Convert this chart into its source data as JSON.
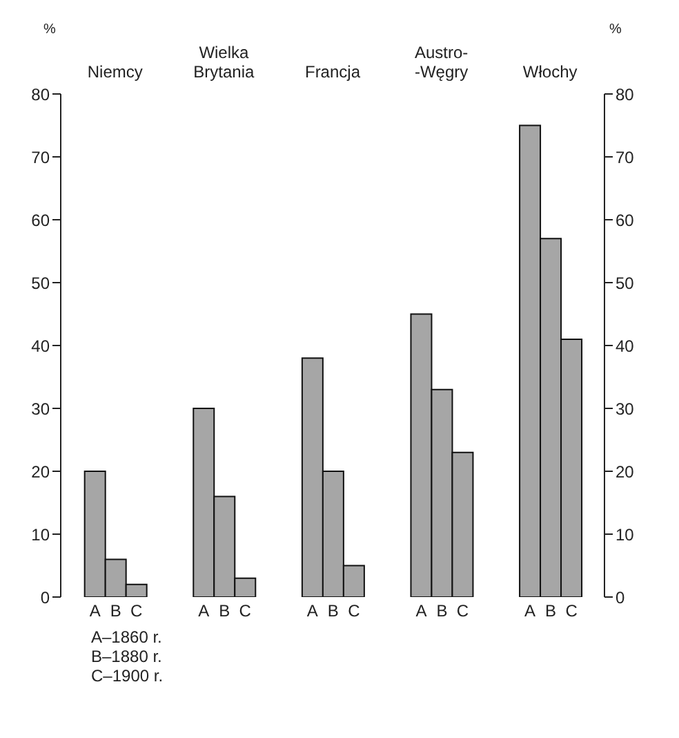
{
  "chart_data": {
    "type": "bar",
    "categories": [
      "Niemcy",
      "Wielka\nBrytania",
      "Francja",
      "Austro-\n-Węgry",
      "Włochy"
    ],
    "series": [
      {
        "name": "A",
        "color": "#a6a6a6",
        "values": [
          20,
          30,
          38,
          45,
          75
        ]
      },
      {
        "name": "B",
        "color": "#a6a6a6",
        "values": [
          6,
          16,
          20,
          33,
          57
        ]
      },
      {
        "name": "C",
        "color": "#a6a6a6",
        "values": [
          2,
          3,
          5,
          23,
          41
        ]
      }
    ],
    "ylabel": "%",
    "y2label": "%",
    "ylim": [
      0,
      80
    ],
    "yticks": [
      0,
      10,
      20,
      30,
      40,
      50,
      60,
      70,
      80
    ],
    "y2lim": [
      0,
      80
    ],
    "y2ticks": [
      0,
      10,
      20,
      30,
      40,
      50,
      60,
      70,
      80
    ],
    "annotations": [
      "A–1860 r.",
      "B–1880 r.",
      "C–1900 r."
    ],
    "grid": false,
    "legend": false
  }
}
